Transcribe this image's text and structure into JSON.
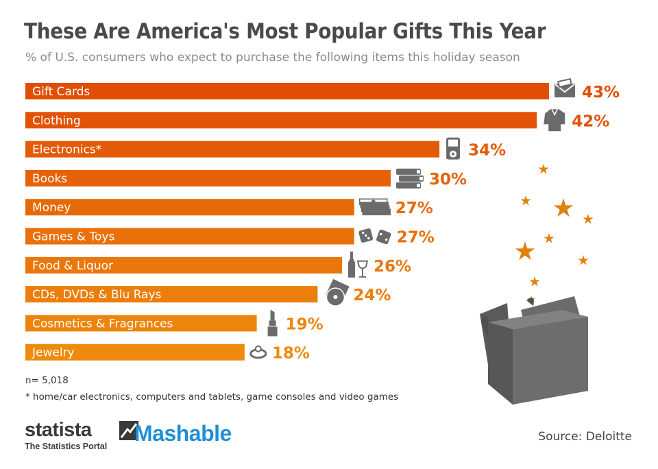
{
  "header": {
    "title": "These Are America's Most Popular Gifts This Year",
    "subtitle": "% of U.S. consumers who expect to purchase the following items this holiday season"
  },
  "chart_data": {
    "type": "bar",
    "orientation": "horizontal",
    "unit": "%",
    "categories": [
      "Gift Cards",
      "Clothing",
      "Electronics*",
      "Books",
      "Money",
      "Games & Toys",
      "Food & Liquor",
      "CDs, DVDs & Blu Rays",
      "Cosmetics & Fragrances",
      "Jewelry"
    ],
    "values": [
      43,
      42,
      34,
      30,
      27,
      27,
      26,
      24,
      19,
      18
    ],
    "value_labels": [
      "43%",
      "42%",
      "34%",
      "30%",
      "27%",
      "27%",
      "26%",
      "24%",
      "19%",
      "18%"
    ],
    "icons": [
      "envelope-icon",
      "shirt-icon",
      "media-player-icon",
      "books-icon",
      "money-stack-icon",
      "dice-icon",
      "wine-icon",
      "disc-icon",
      "lipstick-icon",
      "ring-icon"
    ],
    "colors": [
      "#e14d05",
      "#e25306",
      "#e45b07",
      "#e56208",
      "#e76a09",
      "#e9700a",
      "#ea770b",
      "#ec7e0c",
      "#ed850d",
      "#ee8b0e"
    ],
    "xlim": [
      0,
      43
    ],
    "title": "These Are America's Most Popular Gifts This Year",
    "xlabel": "",
    "ylabel": ""
  },
  "decoration": {
    "star_color": "#e0820e",
    "box_color": "#6b6b6b"
  },
  "footnotes": {
    "n": "n= 5,018",
    "star": "* home/car electronics, computers and tablets, game consoles and video games"
  },
  "source": "Source: Deloitte",
  "logos": {
    "statista_word": "statista",
    "statista_tagline": "The Statistics Portal",
    "mashable_word": "Mashable"
  }
}
